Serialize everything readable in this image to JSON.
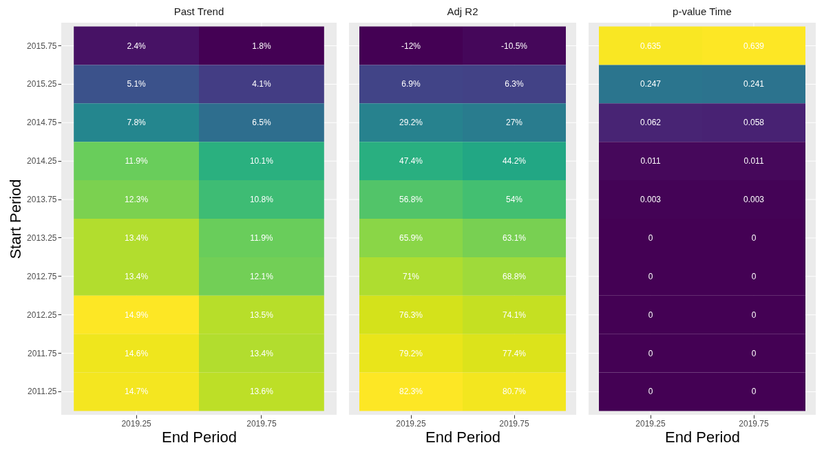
{
  "chart_data": [
    {
      "type": "heatmap",
      "title": "Past Trend",
      "xlabel": "End Period",
      "ylabel": "Start Period",
      "grid": true,
      "categories": [
        "2019.25",
        "2019.75"
      ],
      "y_categories": [
        "2015.75",
        "2015.25",
        "2014.75",
        "2014.25",
        "2013.75",
        "2013.25",
        "2012.75",
        "2012.25",
        "2011.75",
        "2011.25"
      ],
      "cells": [
        [
          2.4,
          1.8
        ],
        [
          5.1,
          4.1
        ],
        [
          7.8,
          6.5
        ],
        [
          11.9,
          10.1
        ],
        [
          12.3,
          10.8
        ],
        [
          13.4,
          11.9
        ],
        [
          13.4,
          12.1
        ],
        [
          14.9,
          13.5
        ],
        [
          14.6,
          13.4
        ],
        [
          14.7,
          13.6
        ]
      ],
      "cell_labels": [
        [
          "2.4%",
          "1.8%"
        ],
        [
          "5.1%",
          "4.1%"
        ],
        [
          "7.8%",
          "6.5%"
        ],
        [
          "11.9%",
          "10.1%"
        ],
        [
          "12.3%",
          "10.8%"
        ],
        [
          "13.4%",
          "11.9%"
        ],
        [
          "13.4%",
          "12.1%"
        ],
        [
          "14.9%",
          "13.5%"
        ],
        [
          "14.6%",
          "13.4%"
        ],
        [
          "14.7%",
          "13.6%"
        ]
      ]
    },
    {
      "type": "heatmap",
      "title": "Adj R2",
      "xlabel": "End Period",
      "grid": true,
      "tick_labels": "x",
      "categories": [
        "2019.25",
        "2019.75"
      ],
      "y_categories": [
        "2015.75",
        "2015.25",
        "2014.75",
        "2014.25",
        "2013.75",
        "2013.25",
        "2012.75",
        "2012.25",
        "2011.75",
        "2011.25"
      ],
      "cells": [
        [
          -12,
          -10.5
        ],
        [
          6.9,
          6.3
        ],
        [
          29.2,
          27
        ],
        [
          47.4,
          44.2
        ],
        [
          56.8,
          54
        ],
        [
          65.9,
          63.1
        ],
        [
          71,
          68.8
        ],
        [
          76.3,
          74.1
        ],
        [
          79.2,
          77.4
        ],
        [
          82.3,
          80.7
        ]
      ],
      "cell_labels": [
        [
          "-12%",
          "-10.5%"
        ],
        [
          "6.9%",
          "6.3%"
        ],
        [
          "29.2%",
          "27%"
        ],
        [
          "47.4%",
          "44.2%"
        ],
        [
          "56.8%",
          "54%"
        ],
        [
          "65.9%",
          "63.1%"
        ],
        [
          "71%",
          "68.8%"
        ],
        [
          "76.3%",
          "74.1%"
        ],
        [
          "79.2%",
          "77.4%"
        ],
        [
          "82.3%",
          "80.7%"
        ]
      ]
    },
    {
      "type": "heatmap",
      "title": "p-value Time",
      "xlabel": "End Period",
      "grid": true,
      "data_labels": true,
      "tick_labels": "x",
      "categories": [
        "2019.25",
        "2019.75"
      ],
      "y_categories": [
        "2015.75",
        "2015.25",
        "2014.75",
        "2014.25",
        "2013.75",
        "2013.25",
        "2012.75",
        "2012.25",
        "2011.75",
        "2011.25"
      ],
      "cells": [
        [
          0.635,
          0.639
        ],
        [
          0.247,
          0.241
        ],
        [
          0.062,
          0.058
        ],
        [
          0.011,
          0.011
        ],
        [
          0.003,
          0.003
        ],
        [
          0,
          0
        ],
        [
          0,
          0
        ],
        [
          0,
          0
        ],
        [
          0,
          0
        ],
        [
          0,
          0
        ]
      ]
    }
  ]
}
